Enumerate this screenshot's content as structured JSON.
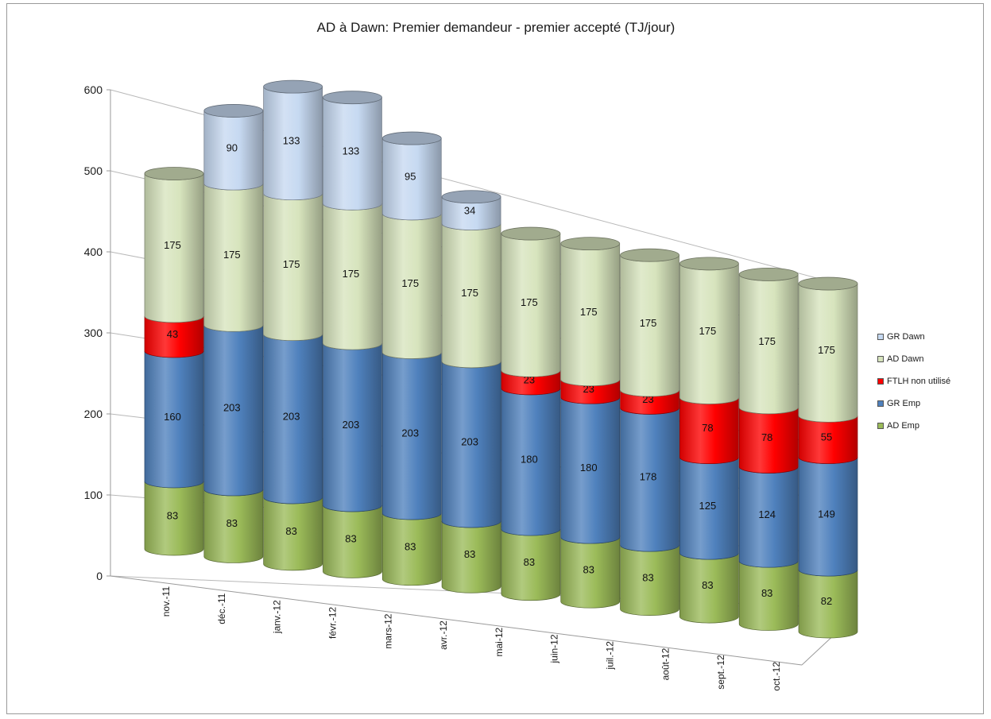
{
  "chart_data": {
    "type": "bar",
    "stacked": true,
    "style": "3d-cylinder",
    "title": "AD à Dawn: Premier demandeur - premier accepté (TJ/jour)",
    "categories": [
      "nov.-11",
      "déc.-11",
      "janv.-12",
      "févr.-12",
      "mars-12",
      "avr.-12",
      "mai-12",
      "juin-12",
      "juil.-12",
      "août-12",
      "sept.-12",
      "oct.-12"
    ],
    "y_ticks": [
      "0",
      "100",
      "200",
      "300",
      "400",
      "500",
      "600"
    ],
    "ylim": [
      0,
      600
    ],
    "grid": true,
    "legend_position": "right",
    "series": [
      {
        "name": "AD Emp",
        "color": "#9bbb59",
        "values": [
          83,
          83,
          83,
          83,
          83,
          83,
          83,
          83,
          83,
          83,
          83,
          82
        ]
      },
      {
        "name": "GR Emp",
        "color": "#4f81bd",
        "values": [
          160,
          203,
          203,
          203,
          203,
          203,
          180,
          180,
          178,
          125,
          124,
          149
        ]
      },
      {
        "name": "FTLH non  utilisé",
        "color": "#ff0000",
        "values": [
          43,
          0,
          0,
          0,
          0,
          0,
          23,
          23,
          23,
          78,
          78,
          55
        ]
      },
      {
        "name": "AD Dawn",
        "color": "#d7e4bd",
        "values": [
          175,
          175,
          175,
          175,
          175,
          175,
          175,
          175,
          175,
          175,
          175,
          175
        ]
      },
      {
        "name": "GR Dawn",
        "color": "#c6d9f1",
        "values": [
          0,
          90,
          133,
          133,
          95,
          34,
          0,
          0,
          0,
          0,
          0,
          0
        ]
      }
    ]
  }
}
